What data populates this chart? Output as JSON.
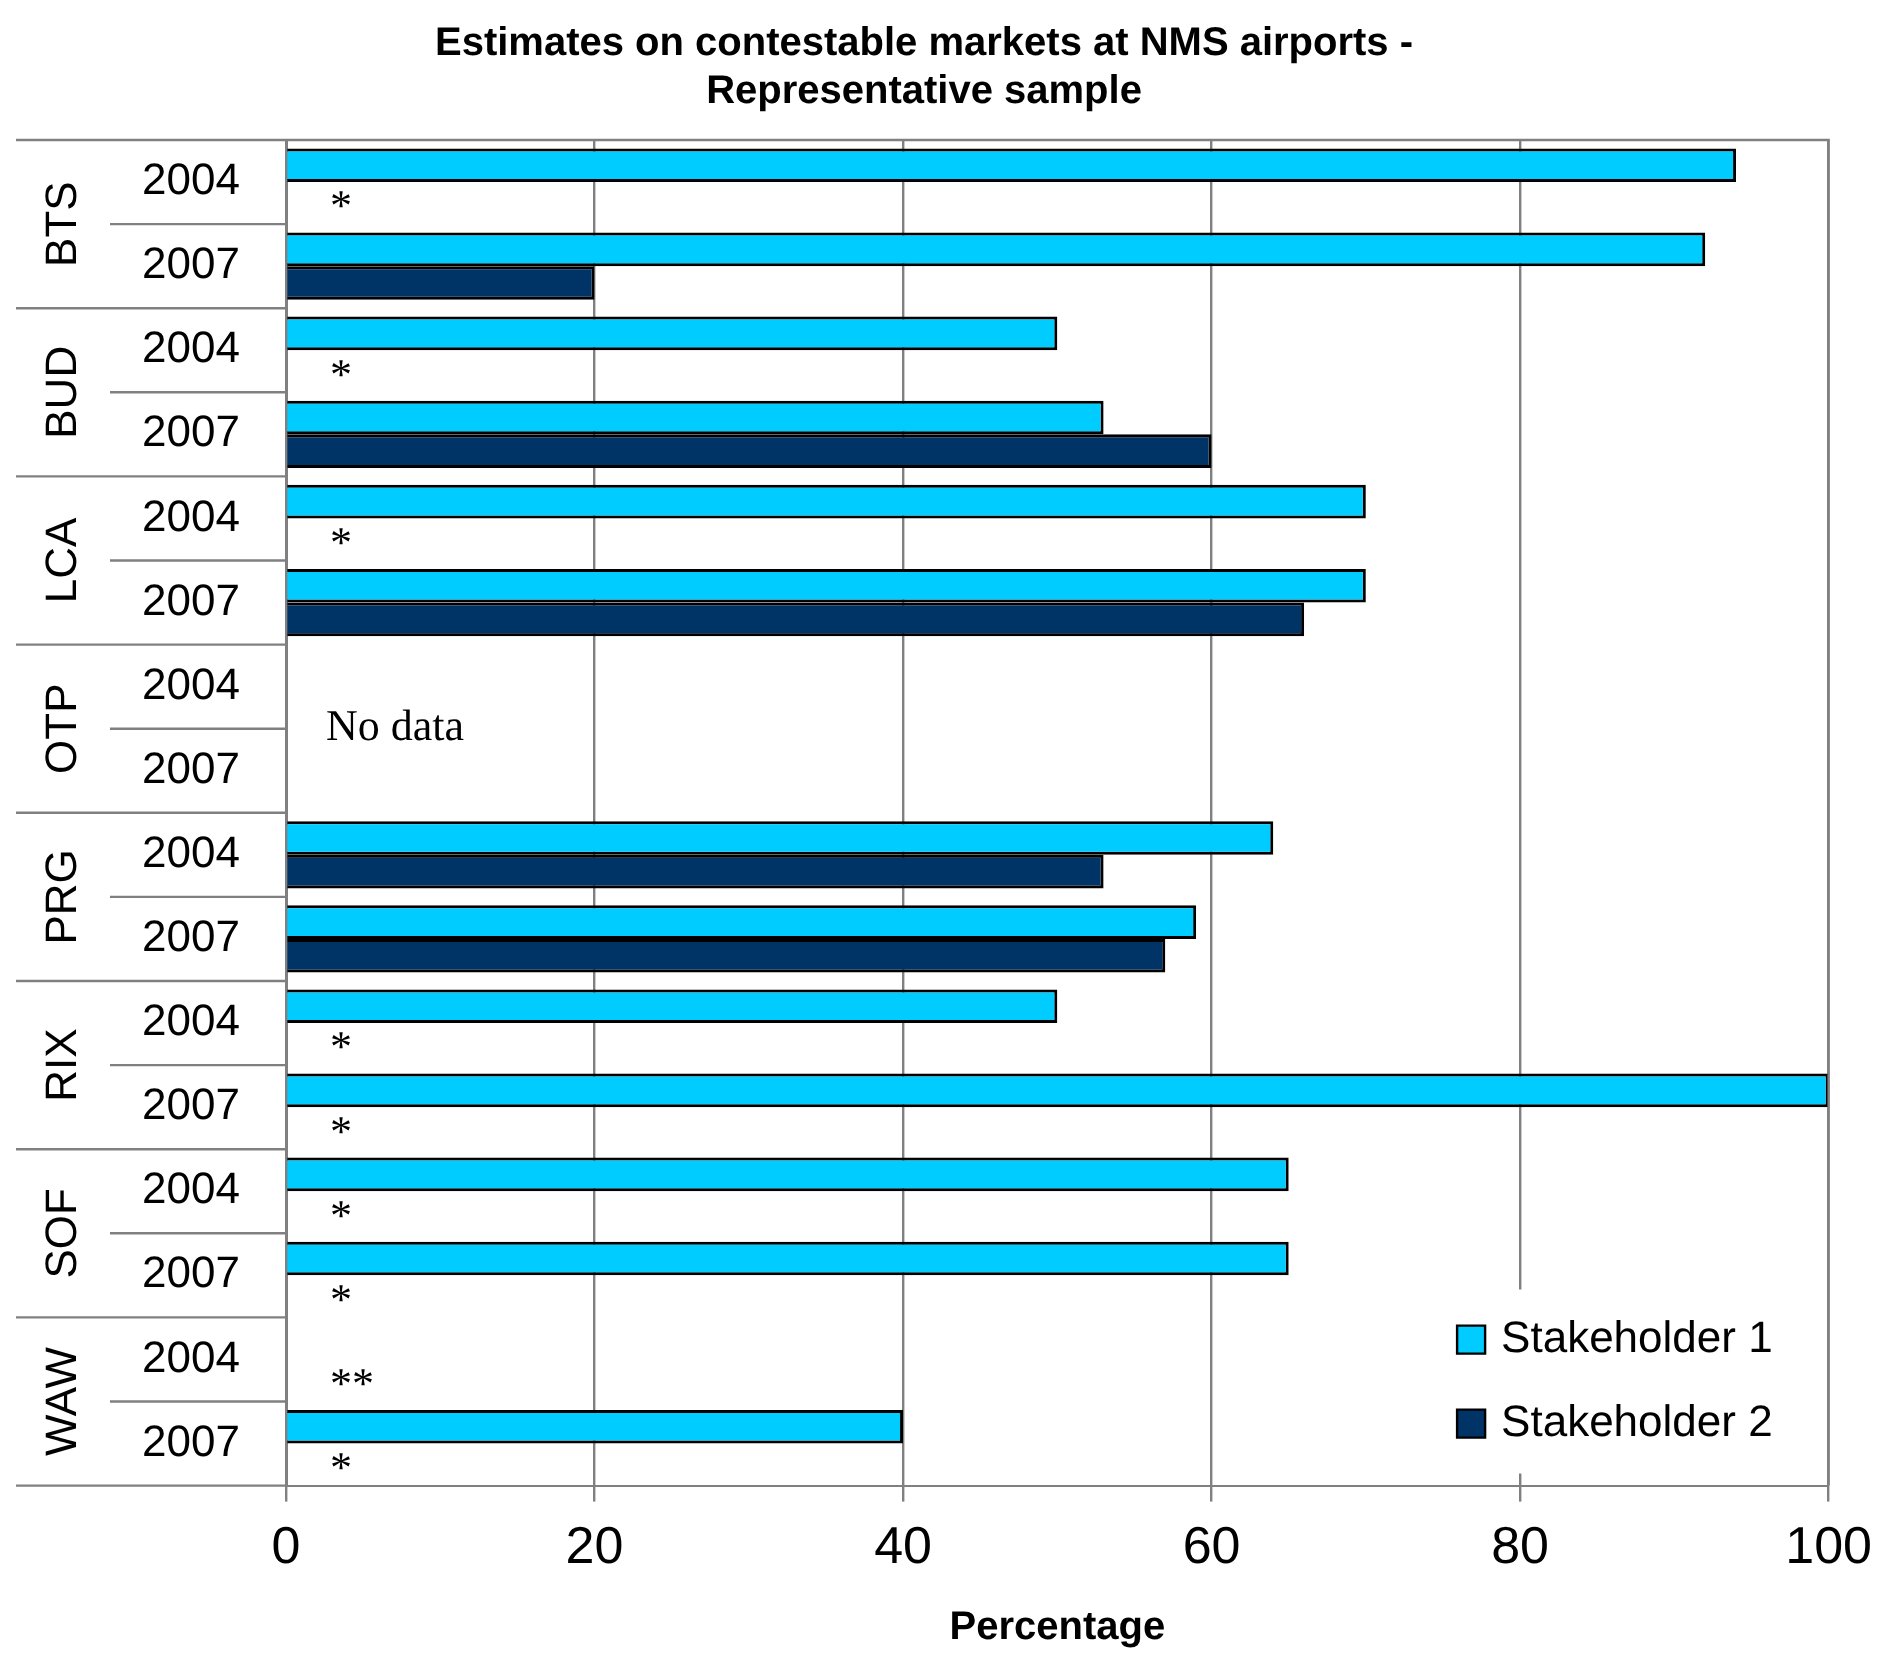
{
  "chart_data": {
    "type": "bar",
    "orientation": "horizontal",
    "title": "Estimates on contestable markets at NMS airports - Representative sample",
    "xlabel": "Percentage",
    "categories": [
      "2004",
      "2007",
      "2004",
      "2007",
      "2004",
      "2007",
      "2004",
      "2007",
      "2004",
      "2007",
      "2004",
      "2007",
      "2004",
      "2007",
      "2004",
      "2007"
    ],
    "series": [
      {
        "name": "Stakeholder 1",
        "color": "#00ccff",
        "values": [
          94,
          92,
          50,
          53,
          70,
          70,
          null,
          null,
          64,
          59,
          50,
          100,
          65,
          65,
          null,
          40
        ]
      },
      {
        "name": "Stakeholder 2",
        "color": "#003366",
        "values": [
          null,
          20,
          null,
          60,
          null,
          66,
          null,
          null,
          53,
          57,
          null,
          null,
          null,
          null,
          null,
          null
        ],
        "value_labels": [
          "*",
          null,
          "*",
          null,
          "*",
          null,
          null,
          null,
          null,
          null,
          "*",
          "*",
          "*",
          "*",
          "**",
          "*"
        ]
      }
    ],
    "annotations": [
      "BTS",
      "BUD",
      "LCA",
      "OTP",
      "PRG",
      "RIX",
      "SOF",
      "WAW",
      "No data"
    ],
    "xlim": [
      0,
      100
    ],
    "xticks": [
      0,
      20,
      40,
      60,
      80,
      100
    ],
    "grid": "x",
    "legend": "bottom right"
  }
}
